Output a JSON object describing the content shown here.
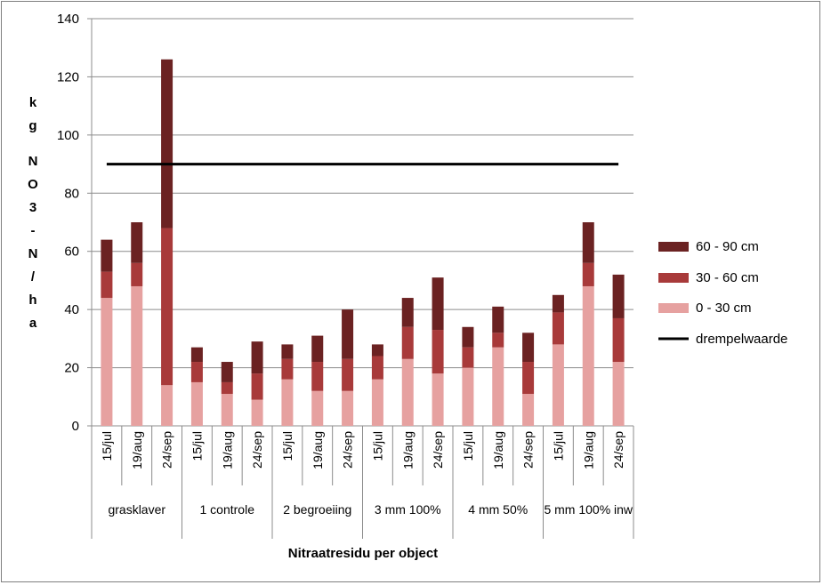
{
  "chart_data": {
    "type": "stacked-bar",
    "ylabel": "kg NO3-N/ha",
    "xlabel": "Nitraatresidu per object",
    "ylim": [
      0,
      140
    ],
    "yticks": [
      0,
      20,
      40,
      60,
      80,
      100,
      120,
      140
    ],
    "grid": true,
    "legend_position": "right",
    "groups": [
      {
        "name": "grasklaver",
        "dates": [
          "15/jul",
          "19/aug",
          "24/sep"
        ]
      },
      {
        "name": "1 controle",
        "dates": [
          "15/jul",
          "19/aug",
          "24/sep"
        ]
      },
      {
        "name": "2 begroeiing",
        "dates": [
          "15/jul",
          "19/aug",
          "24/sep"
        ]
      },
      {
        "name": "3 mm 100%",
        "dates": [
          "15/jul",
          "19/aug",
          "24/sep"
        ]
      },
      {
        "name": "4 mm 50%",
        "dates": [
          "15/jul",
          "19/aug",
          "24/sep"
        ]
      },
      {
        "name": "5 mm 100% inw",
        "dates": [
          "15/jul",
          "19/aug",
          "24/sep"
        ]
      }
    ],
    "series": [
      {
        "name": "0 - 30 cm",
        "color": "#e6a1a0",
        "values": [
          44,
          48,
          14,
          15,
          11,
          9,
          16,
          12,
          12,
          16,
          23,
          18,
          20,
          27,
          11,
          28,
          48,
          22
        ]
      },
      {
        "name": "30 - 60 cm",
        "color": "#a83a3a",
        "values": [
          9,
          8,
          54,
          7,
          4,
          9,
          7,
          10,
          11,
          8,
          11,
          15,
          7,
          5,
          11,
          11,
          8,
          15
        ]
      },
      {
        "name": "60 - 90 cm",
        "color": "#6b2222",
        "values": [
          11,
          14,
          58,
          5,
          7,
          11,
          5,
          9,
          17,
          4,
          10,
          18,
          7,
          9,
          10,
          6,
          14,
          15
        ]
      }
    ],
    "threshold": {
      "name": "drempelwaarde",
      "value": 90,
      "color": "#000000"
    },
    "legend_order": [
      "60 - 90 cm",
      "30 - 60 cm",
      "0 - 30 cm",
      "drempelwaarde"
    ]
  }
}
